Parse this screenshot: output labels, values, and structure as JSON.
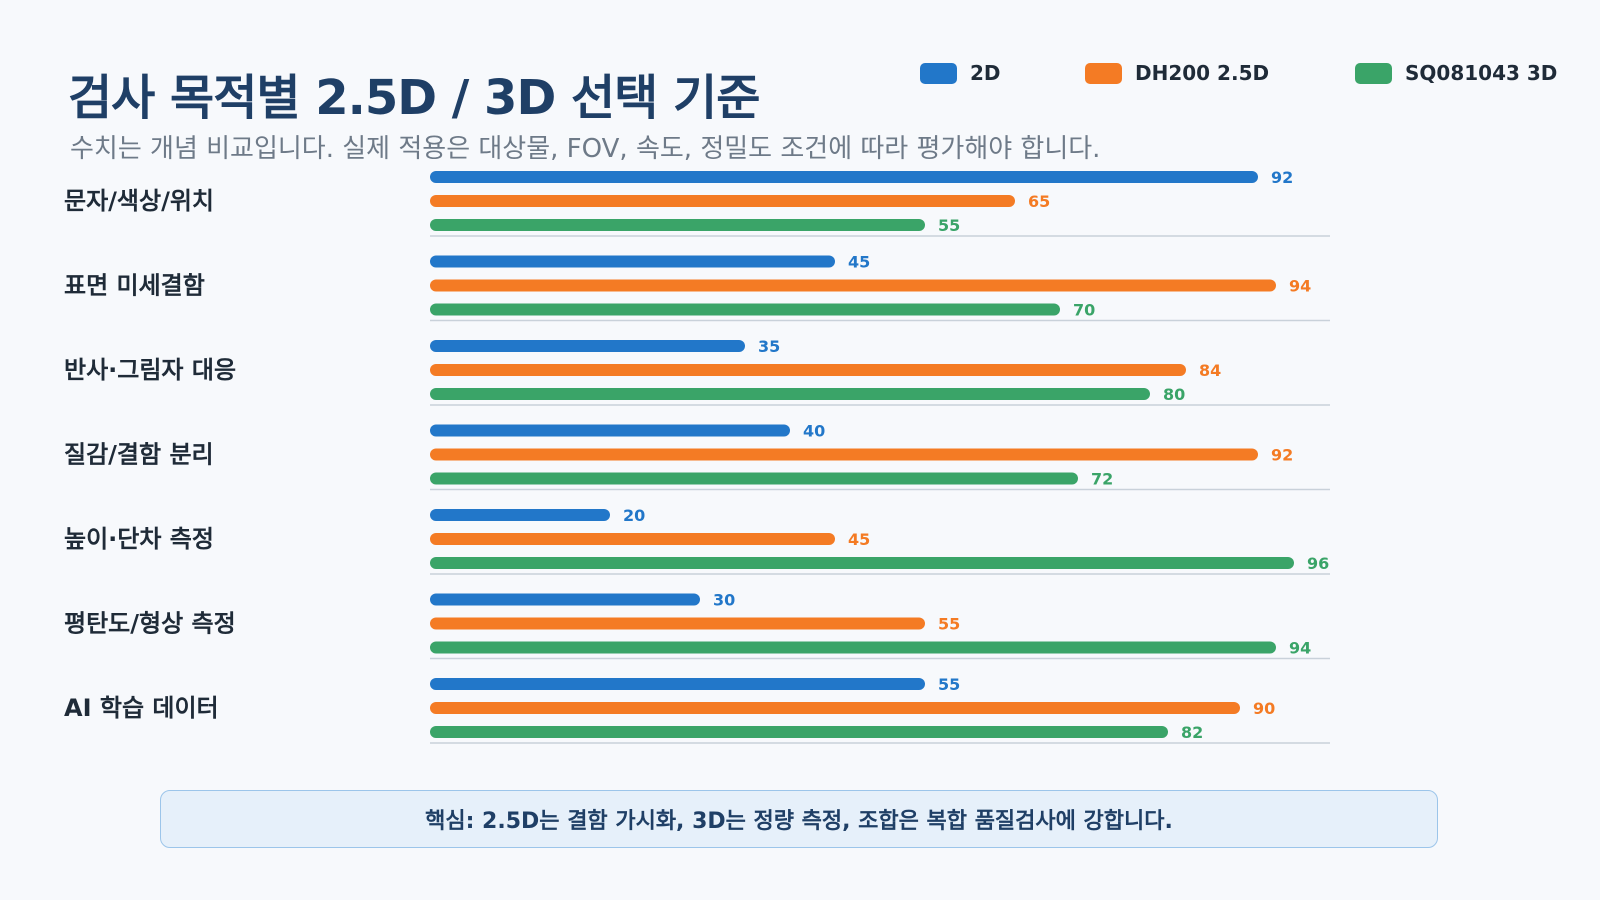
{
  "title": "검사 목적별 2.5D / 3D 선택 기준",
  "subtitle": "수치는 개념 비교입니다. 실제 적용은 대상물, FOV, 속도, 정밀도 조건에 따라 평가해야 합니다.",
  "note": "핵심: 2.5D는 결함 가시화, 3D는 정량 측정, 조합은 복합 품질검사에 강합니다.",
  "colors": {
    "series": [
      "#2277c9",
      "#f47b24",
      "#3aa468"
    ],
    "category_text": "#1f2b38",
    "gridline": "#c9d1da"
  },
  "chart_data": {
    "type": "bar",
    "orientation": "horizontal",
    "title": "검사 목적별 2.5D / 3D 선택 기준",
    "subtitle": "수치는 개념 비교입니다. 실제 적용은 대상물, FOV, 속도, 정밀도 조건에 따라 평가해야 합니다.",
    "categories": [
      "문자/색상/위치",
      "표면 미세결함",
      "반사·그림자 대응",
      "질감/결함 분리",
      "높이·단차 측정",
      "평탄도/형상 측정",
      "AI 학습 데이터"
    ],
    "series": [
      {
        "name": "2D",
        "values": [
          92,
          45,
          35,
          40,
          20,
          30,
          55
        ]
      },
      {
        "name": "DH200 2.5D",
        "values": [
          65,
          94,
          84,
          92,
          45,
          55,
          90
        ]
      },
      {
        "name": "SQ081043 3D",
        "values": [
          55,
          70,
          80,
          72,
          96,
          94,
          82
        ]
      }
    ],
    "xlim": [
      0,
      100
    ],
    "grid": false,
    "legend_position": "top-right",
    "data_labels": true
  }
}
